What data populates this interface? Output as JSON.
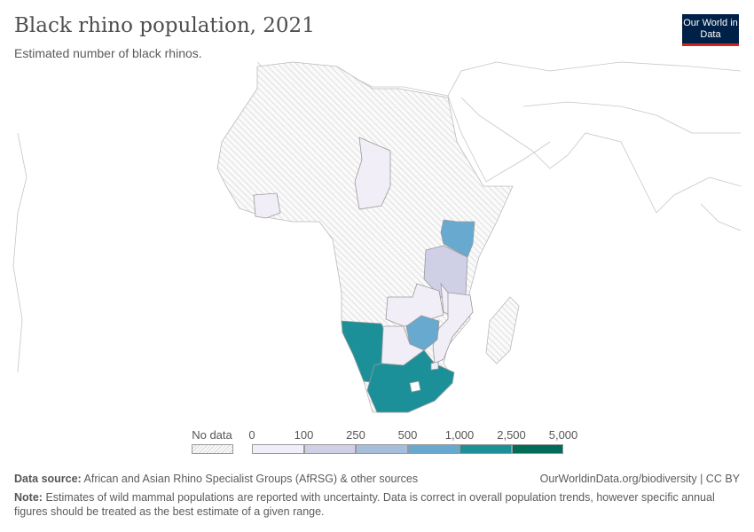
{
  "header": {
    "title": "Black rhino population, 2021",
    "subtitle": "Estimated number of black rhinos.",
    "logo_text": "Our World in Data"
  },
  "legend": {
    "no_data_label": "No data",
    "bins": [
      {
        "from": "0",
        "to": "100",
        "color": "#f2eef7"
      },
      {
        "from": "100",
        "to": "250",
        "color": "#cfd0e5"
      },
      {
        "from": "250",
        "to": "500",
        "color": "#a6bddb"
      },
      {
        "from": "500",
        "to": "1,000",
        "color": "#67a9cf"
      },
      {
        "from": "1,000",
        "to": "2,500",
        "color": "#1c9099"
      },
      {
        "from": "2,500",
        "to": "5,000",
        "color": "#016c59"
      }
    ],
    "ticks": [
      "0",
      "100",
      "250",
      "500",
      "1,000",
      "2,500",
      "5,000"
    ]
  },
  "map": {
    "region": "Africa",
    "countries": [
      {
        "name": "Côte d'Ivoire",
        "bin": "0-100"
      },
      {
        "name": "Chad",
        "bin": "0-100"
      },
      {
        "name": "Kenya",
        "bin": "500-1,000"
      },
      {
        "name": "Tanzania",
        "bin": "100-250"
      },
      {
        "name": "Zambia",
        "bin": "0-100"
      },
      {
        "name": "Malawi",
        "bin": "0-100"
      },
      {
        "name": "Mozambique",
        "bin": "0-100"
      },
      {
        "name": "Zimbabwe",
        "bin": "500-1,000"
      },
      {
        "name": "Botswana",
        "bin": "0-100"
      },
      {
        "name": "Namibia",
        "bin": "1,000-2,500"
      },
      {
        "name": "South Africa",
        "bin": "1,000-2,500"
      },
      {
        "name": "Eswatini",
        "bin": "0-100"
      }
    ]
  },
  "footer": {
    "source_label": "Data source:",
    "source": "African and Asian Rhino Specialist Groups (AfRSG) & other sources",
    "url": "OurWorldinData.org/biodiversity | CC BY",
    "note_label": "Note:",
    "note": "Estimates of wild mammal populations are reported with uncertainty. Data is correct in overall population trends, however specific annual figures should be treated as the best estimate of a given range."
  }
}
